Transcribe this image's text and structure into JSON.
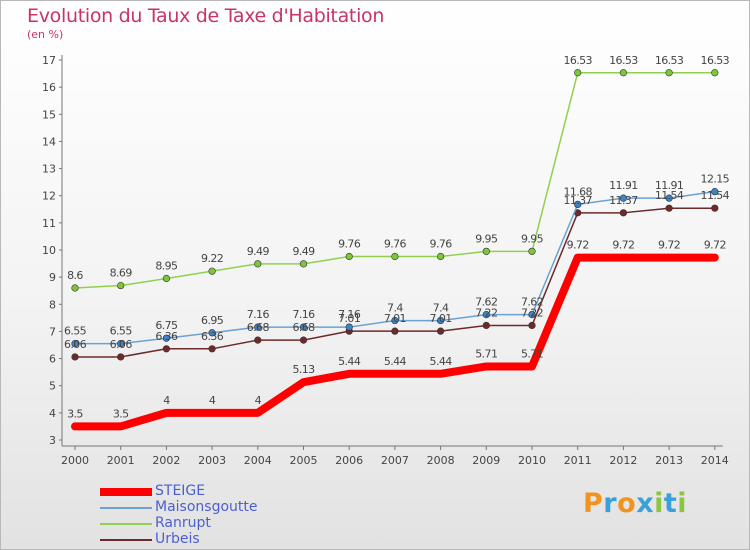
{
  "chart_data": {
    "type": "line",
    "title": "Evolution du Taux de Taxe d'Habitation",
    "unit_label": "(en %)",
    "x": [
      "2000",
      "2001",
      "2002",
      "2003",
      "2004",
      "2005",
      "2006",
      "2007",
      "2008",
      "2009",
      "2010",
      "2011",
      "2012",
      "2013",
      "2014"
    ],
    "ylim": [
      3,
      17
    ],
    "yticks": [
      3,
      4,
      5,
      6,
      7,
      8,
      9,
      10,
      11,
      12,
      13,
      14,
      15,
      16,
      17
    ],
    "grid": false,
    "legend_position": "bottom-left",
    "series": [
      {
        "name": "Ranrupt",
        "color": "#8fd14f",
        "point_color": "#7cc63c",
        "width": 1.5,
        "values": [
          8.6,
          8.69,
          8.95,
          9.22,
          9.49,
          9.49,
          9.76,
          9.76,
          9.76,
          9.95,
          9.95,
          16.53,
          16.53,
          16.53,
          16.53
        ],
        "labels": [
          "8.6",
          "8.69",
          "8.95",
          "9.22",
          "9.49",
          "9.49",
          "9.76",
          "9.76",
          "9.76",
          "9.95",
          "9.95",
          "16.53",
          "16.53",
          "16.53",
          "16.53"
        ]
      },
      {
        "name": "Urbeis",
        "color": "#6e2a2a",
        "point_color": "#6e2a2a",
        "width": 1.5,
        "values": [
          6.06,
          6.06,
          6.36,
          6.36,
          6.68,
          6.68,
          7.01,
          7.01,
          7.01,
          7.22,
          7.22,
          11.37,
          11.37,
          11.54,
          11.54
        ],
        "labels": [
          "6.06",
          "6.06",
          "6.36",
          "6.36",
          "6.68",
          "6.68",
          "7.01",
          "7.01",
          "7.01",
          "7.22",
          "7.22",
          "11.37",
          "11.37",
          "11.54",
          "11.54"
        ]
      },
      {
        "name": "Maisonsgoutte",
        "color": "#6aa2d4",
        "point_color": "#3d83c6",
        "width": 1.5,
        "values": [
          6.55,
          6.55,
          6.75,
          6.95,
          7.16,
          7.16,
          7.16,
          7.4,
          7.4,
          7.62,
          7.62,
          11.68,
          11.91,
          11.91,
          12.15
        ],
        "labels": [
          "6.55",
          "6.55",
          "6.75",
          "6.95",
          "7.16",
          "7.16",
          "7.16",
          "7.4",
          "7.4",
          "7.62",
          "7.62",
          "11.68",
          "11.91",
          "11.91",
          "12.15"
        ]
      },
      {
        "name": "STEIGE",
        "color": "#ff0000",
        "point_color": "#ff0000",
        "width": 8,
        "values": [
          3.5,
          3.5,
          4,
          4,
          4,
          5.13,
          5.44,
          5.44,
          5.44,
          5.71,
          5.71,
          9.72,
          9.72,
          9.72,
          9.72
        ],
        "labels": [
          "3.5",
          "3.5",
          "4",
          "4",
          "4",
          "5.13",
          "5.44",
          "5.44",
          "5.44",
          "5.71",
          "5.71",
          "9.72",
          "9.72",
          "9.72",
          "9.72"
        ]
      }
    ]
  },
  "legend": [
    "STEIGE",
    "Maisonsgoutte",
    "Ranrupt",
    "Urbeis"
  ],
  "logo": {
    "letters": [
      "P",
      "r",
      "o",
      "x",
      "i",
      "t",
      "i"
    ],
    "colors": [
      "#f29320",
      "#3aa0d8",
      "#f29320",
      "#3aa0d8",
      "#8cc63e",
      "#3aa0d8",
      "#8cc63e"
    ]
  }
}
